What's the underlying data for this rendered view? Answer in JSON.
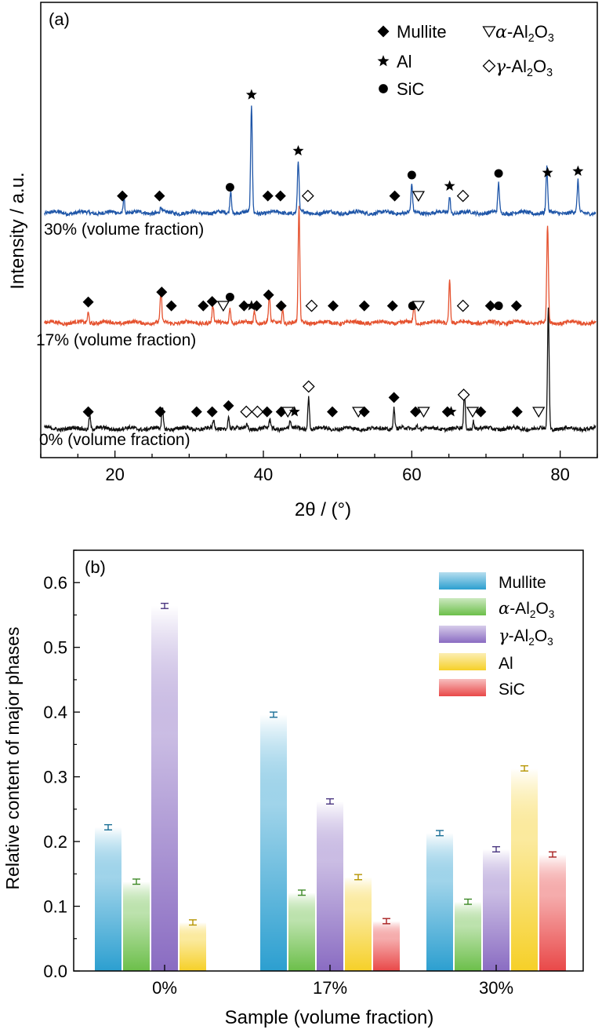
{
  "chart_data": [
    {
      "type": "line",
      "panel_label": "(a)",
      "xlabel": "2θ / (°)",
      "ylabel": "Intensity / a.u.",
      "xlim": [
        10,
        85
      ],
      "xticks": [
        20,
        40,
        60,
        80
      ],
      "yticks_shown": false,
      "series": [
        {
          "label": "30% (volume fraction)",
          "color": "#1f56a8",
          "peaks": [
            {
              "x": 21.2,
              "h": 0.29
            },
            {
              "x": 26.2,
              "h": 0.1
            },
            {
              "x": 35.6,
              "h": 0.42
            },
            {
              "x": 38.4,
              "h": 1.96
            },
            {
              "x": 44.7,
              "h": 0.94
            },
            {
              "x": 60.0,
              "h": 0.5
            },
            {
              "x": 65.1,
              "h": 0.3
            },
            {
              "x": 71.7,
              "h": 0.53
            },
            {
              "x": 78.2,
              "h": 0.82
            },
            {
              "x": 82.4,
              "h": 0.57
            }
          ]
        },
        {
          "label": "17% (volume fraction)",
          "color": "#e5522f",
          "peaks": [
            {
              "x": 16.4,
              "h": 0.19
            },
            {
              "x": 26.2,
              "h": 0.56
            },
            {
              "x": 33.2,
              "h": 0.3
            },
            {
              "x": 35.5,
              "h": 0.28
            },
            {
              "x": 38.8,
              "h": 0.22
            },
            {
              "x": 40.8,
              "h": 0.48
            },
            {
              "x": 42.6,
              "h": 0.25
            },
            {
              "x": 44.8,
              "h": 2.08
            },
            {
              "x": 60.3,
              "h": 0.32
            },
            {
              "x": 65.1,
              "h": 0.77
            },
            {
              "x": 78.3,
              "h": 1.78
            }
          ]
        },
        {
          "label": "0% (volume fraction)",
          "color": "#111111",
          "peaks": [
            {
              "x": 16.6,
              "h": 0.25
            },
            {
              "x": 26.4,
              "h": 0.37
            },
            {
              "x": 33.3,
              "h": 0.13
            },
            {
              "x": 35.3,
              "h": 0.23
            },
            {
              "x": 37.8,
              "h": 0.1
            },
            {
              "x": 40.9,
              "h": 0.16
            },
            {
              "x": 43.6,
              "h": 0.14
            },
            {
              "x": 46.1,
              "h": 0.58
            },
            {
              "x": 57.6,
              "h": 0.38
            },
            {
              "x": 60.7,
              "h": 0.09
            },
            {
              "x": 67.1,
              "h": 0.65
            },
            {
              "x": 68.3,
              "h": 0.15
            },
            {
              "x": 78.4,
              "h": 2.2
            }
          ]
        }
      ],
      "legend": [
        {
          "symbol": "filled-diamond",
          "label": "Mullite"
        },
        {
          "symbol": "star",
          "label": "Al"
        },
        {
          "symbol": "filled-circle",
          "label": "SiC"
        },
        {
          "symbol": "open-triangle-down",
          "greek": "α",
          "label": "-Al",
          "sub": "2",
          "label2": "O",
          "sub2": "3"
        },
        {
          "symbol": "open-diamond",
          "greek": "γ",
          "label": "-Al",
          "sub": "2",
          "label2": "O",
          "sub2": "3"
        }
      ],
      "phase_markers": {
        "30%": [
          {
            "x": 21.0,
            "sym": "filled-diamond"
          },
          {
            "x": 26.0,
            "sym": "filled-diamond"
          },
          {
            "x": 35.5,
            "sym": "filled-circle"
          },
          {
            "x": 38.4,
            "sym": "star"
          },
          {
            "x": 40.6,
            "sym": "filled-diamond"
          },
          {
            "x": 42.3,
            "sym": "filled-diamond"
          },
          {
            "x": 44.7,
            "sym": "star"
          },
          {
            "x": 46.0,
            "sym": "open-diamond"
          },
          {
            "x": 57.7,
            "sym": "filled-diamond"
          },
          {
            "x": 60.0,
            "sym": "filled-circle"
          },
          {
            "x": 60.9,
            "sym": "open-triangle-down"
          },
          {
            "x": 65.1,
            "sym": "star"
          },
          {
            "x": 66.9,
            "sym": "open-diamond"
          },
          {
            "x": 71.7,
            "sym": "filled-circle"
          },
          {
            "x": 78.3,
            "sym": "star"
          },
          {
            "x": 82.4,
            "sym": "star"
          }
        ],
        "17%": [
          {
            "x": 16.4,
            "sym": "filled-diamond"
          },
          {
            "x": 26.3,
            "sym": "filled-diamond"
          },
          {
            "x": 27.6,
            "sym": "filled-diamond"
          },
          {
            "x": 31.9,
            "sym": "filled-diamond"
          },
          {
            "x": 33.1,
            "sym": "filled-diamond"
          },
          {
            "x": 34.6,
            "sym": "open-triangle-down"
          },
          {
            "x": 35.5,
            "sym": "filled-circle"
          },
          {
            "x": 37.4,
            "sym": "filled-diamond"
          },
          {
            "x": 38.4,
            "sym": "star"
          },
          {
            "x": 39.1,
            "sym": "filled-diamond"
          },
          {
            "x": 40.7,
            "sym": "filled-diamond"
          },
          {
            "x": 42.4,
            "sym": "filled-diamond"
          },
          {
            "x": 46.5,
            "sym": "open-diamond"
          },
          {
            "x": 49.4,
            "sym": "filled-diamond"
          },
          {
            "x": 53.6,
            "sym": "filled-diamond"
          },
          {
            "x": 57.4,
            "sym": "filled-diamond"
          },
          {
            "x": 60.1,
            "sym": "filled-circle"
          },
          {
            "x": 60.9,
            "sym": "open-triangle-down"
          },
          {
            "x": 66.9,
            "sym": "open-diamond"
          },
          {
            "x": 70.6,
            "sym": "filled-diamond"
          },
          {
            "x": 71.7,
            "sym": "filled-circle"
          },
          {
            "x": 74.1,
            "sym": "filled-diamond"
          }
        ],
        "0%": [
          {
            "x": 16.4,
            "sym": "filled-diamond"
          },
          {
            "x": 26.1,
            "sym": "filled-diamond"
          },
          {
            "x": 31.0,
            "sym": "filled-diamond"
          },
          {
            "x": 33.1,
            "sym": "filled-diamond"
          },
          {
            "x": 35.3,
            "sym": "filled-diamond"
          },
          {
            "x": 37.7,
            "sym": "open-diamond"
          },
          {
            "x": 39.2,
            "sym": "open-diamond"
          },
          {
            "x": 40.5,
            "sym": "filled-diamond"
          },
          {
            "x": 42.4,
            "sym": "filled-diamond"
          },
          {
            "x": 43.3,
            "sym": "open-triangle-down"
          },
          {
            "x": 44.2,
            "sym": "star"
          },
          {
            "x": 46.1,
            "sym": "open-diamond"
          },
          {
            "x": 49.3,
            "sym": "filled-diamond"
          },
          {
            "x": 52.8,
            "sym": "open-triangle-down"
          },
          {
            "x": 53.6,
            "sym": "filled-diamond"
          },
          {
            "x": 57.6,
            "sym": "filled-diamond"
          },
          {
            "x": 60.5,
            "sym": "filled-diamond"
          },
          {
            "x": 61.6,
            "sym": "open-triangle-down"
          },
          {
            "x": 64.8,
            "sym": "filled-diamond"
          },
          {
            "x": 65.3,
            "sym": "star"
          },
          {
            "x": 67.0,
            "sym": "open-diamond"
          },
          {
            "x": 68.2,
            "sym": "open-triangle-down"
          },
          {
            "x": 69.3,
            "sym": "filled-diamond"
          },
          {
            "x": 74.2,
            "sym": "filled-diamond"
          },
          {
            "x": 77.1,
            "sym": "open-triangle-down"
          }
        ]
      }
    },
    {
      "type": "bar",
      "panel_label": "(b)",
      "xlabel": "Sample (volume fraction)",
      "ylabel": "Relative content of major phases",
      "ylim": [
        0.0,
        0.65
      ],
      "yticks": [
        "0.0",
        "0.1",
        "0.2",
        "0.3",
        "0.4",
        "0.5",
        "0.6"
      ],
      "categories": [
        "0%",
        "17%",
        "30%"
      ],
      "series": [
        {
          "name": "Mullite",
          "color": "#2c9fd0",
          "error_color": "#1a6f96",
          "values": [
            0.222,
            0.396,
            0.213
          ],
          "errors": [
            0.004,
            0.004,
            0.004
          ]
        },
        {
          "name": "-Al",
          "greek": "α",
          "sub": "2",
          "name2": "O",
          "sub2": "3",
          "color": "#6cbf4a",
          "error_color": "#3f8a28",
          "values": [
            0.138,
            0.121,
            0.107
          ],
          "errors": [
            0.004,
            0.004,
            0.004
          ]
        },
        {
          "name": "-Al",
          "greek": "γ",
          "sub": "2",
          "name2": "O",
          "sub2": "3",
          "color": "#8a6cc2",
          "error_color": "#4a3680",
          "values": [
            0.564,
            0.262,
            0.188
          ],
          "errors": [
            0.004,
            0.004,
            0.004
          ]
        },
        {
          "name": "Al",
          "color": "#f6d028",
          "error_color": "#b59400",
          "values": [
            0.075,
            0.145,
            0.313
          ],
          "errors": [
            0.004,
            0.004,
            0.004
          ]
        },
        {
          "name": "SiC",
          "color": "#e94848",
          "error_color": "#a82020",
          "values": [
            null,
            0.077,
            0.18
          ],
          "errors": [
            null,
            0.004,
            0.004
          ]
        }
      ]
    }
  ]
}
